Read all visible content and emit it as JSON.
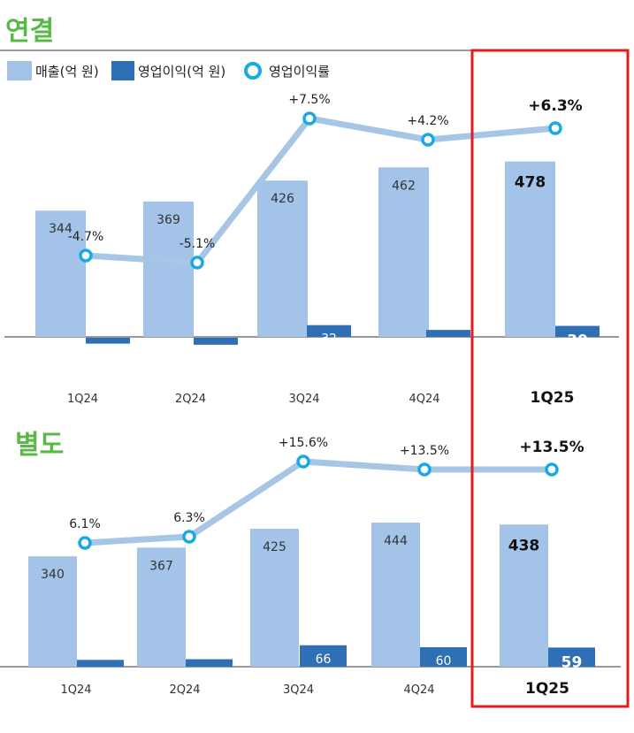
{
  "colors": {
    "revenue": "#a3c4e8",
    "op_income": "#2f6fb6",
    "margin_line": "#a7c6e6",
    "margin_marker": "#1ca8e0",
    "section_title": "#58b947",
    "highlight_box": "#e31b1b"
  },
  "legend": {
    "revenue": "매출(억 원)",
    "op_income": "영업이익(억 원)",
    "margin": "영업이익률"
  },
  "chart_data": [
    {
      "type": "bar",
      "title": "연결",
      "categories": [
        "1Q24",
        "2Q24",
        "3Q24",
        "4Q24",
        "1Q25"
      ],
      "series": [
        {
          "name": "매출(억 원)",
          "values": [
            344,
            369,
            426,
            462,
            478
          ]
        },
        {
          "name": "영업이익(억 원)",
          "values": [
            -16,
            -19,
            32,
            19,
            30
          ]
        },
        {
          "name": "영업이익률",
          "values": [
            -4.7,
            -5.1,
            7.5,
            4.2,
            6.3
          ],
          "labels": [
            "-4.7%",
            "-5.1%",
            "+7.5%",
            "+4.2%",
            "+6.3%"
          ]
        }
      ],
      "highlight": "1Q25"
    },
    {
      "type": "bar",
      "title": "별도",
      "categories": [
        "1Q24",
        "2Q24",
        "3Q24",
        "4Q24",
        "1Q25"
      ],
      "series": [
        {
          "name": "매출(억 원)",
          "values": [
            340,
            367,
            425,
            444,
            438
          ]
        },
        {
          "name": "영업이익(억 원)",
          "values": [
            21,
            23,
            66,
            60,
            59
          ]
        },
        {
          "name": "영업이익률",
          "values": [
            6.1,
            6.3,
            15.6,
            13.5,
            13.5
          ],
          "labels": [
            "6.1%",
            "6.3%",
            "+15.6%",
            "+13.5%",
            "+13.5%"
          ]
        }
      ],
      "highlight": "1Q25"
    }
  ]
}
